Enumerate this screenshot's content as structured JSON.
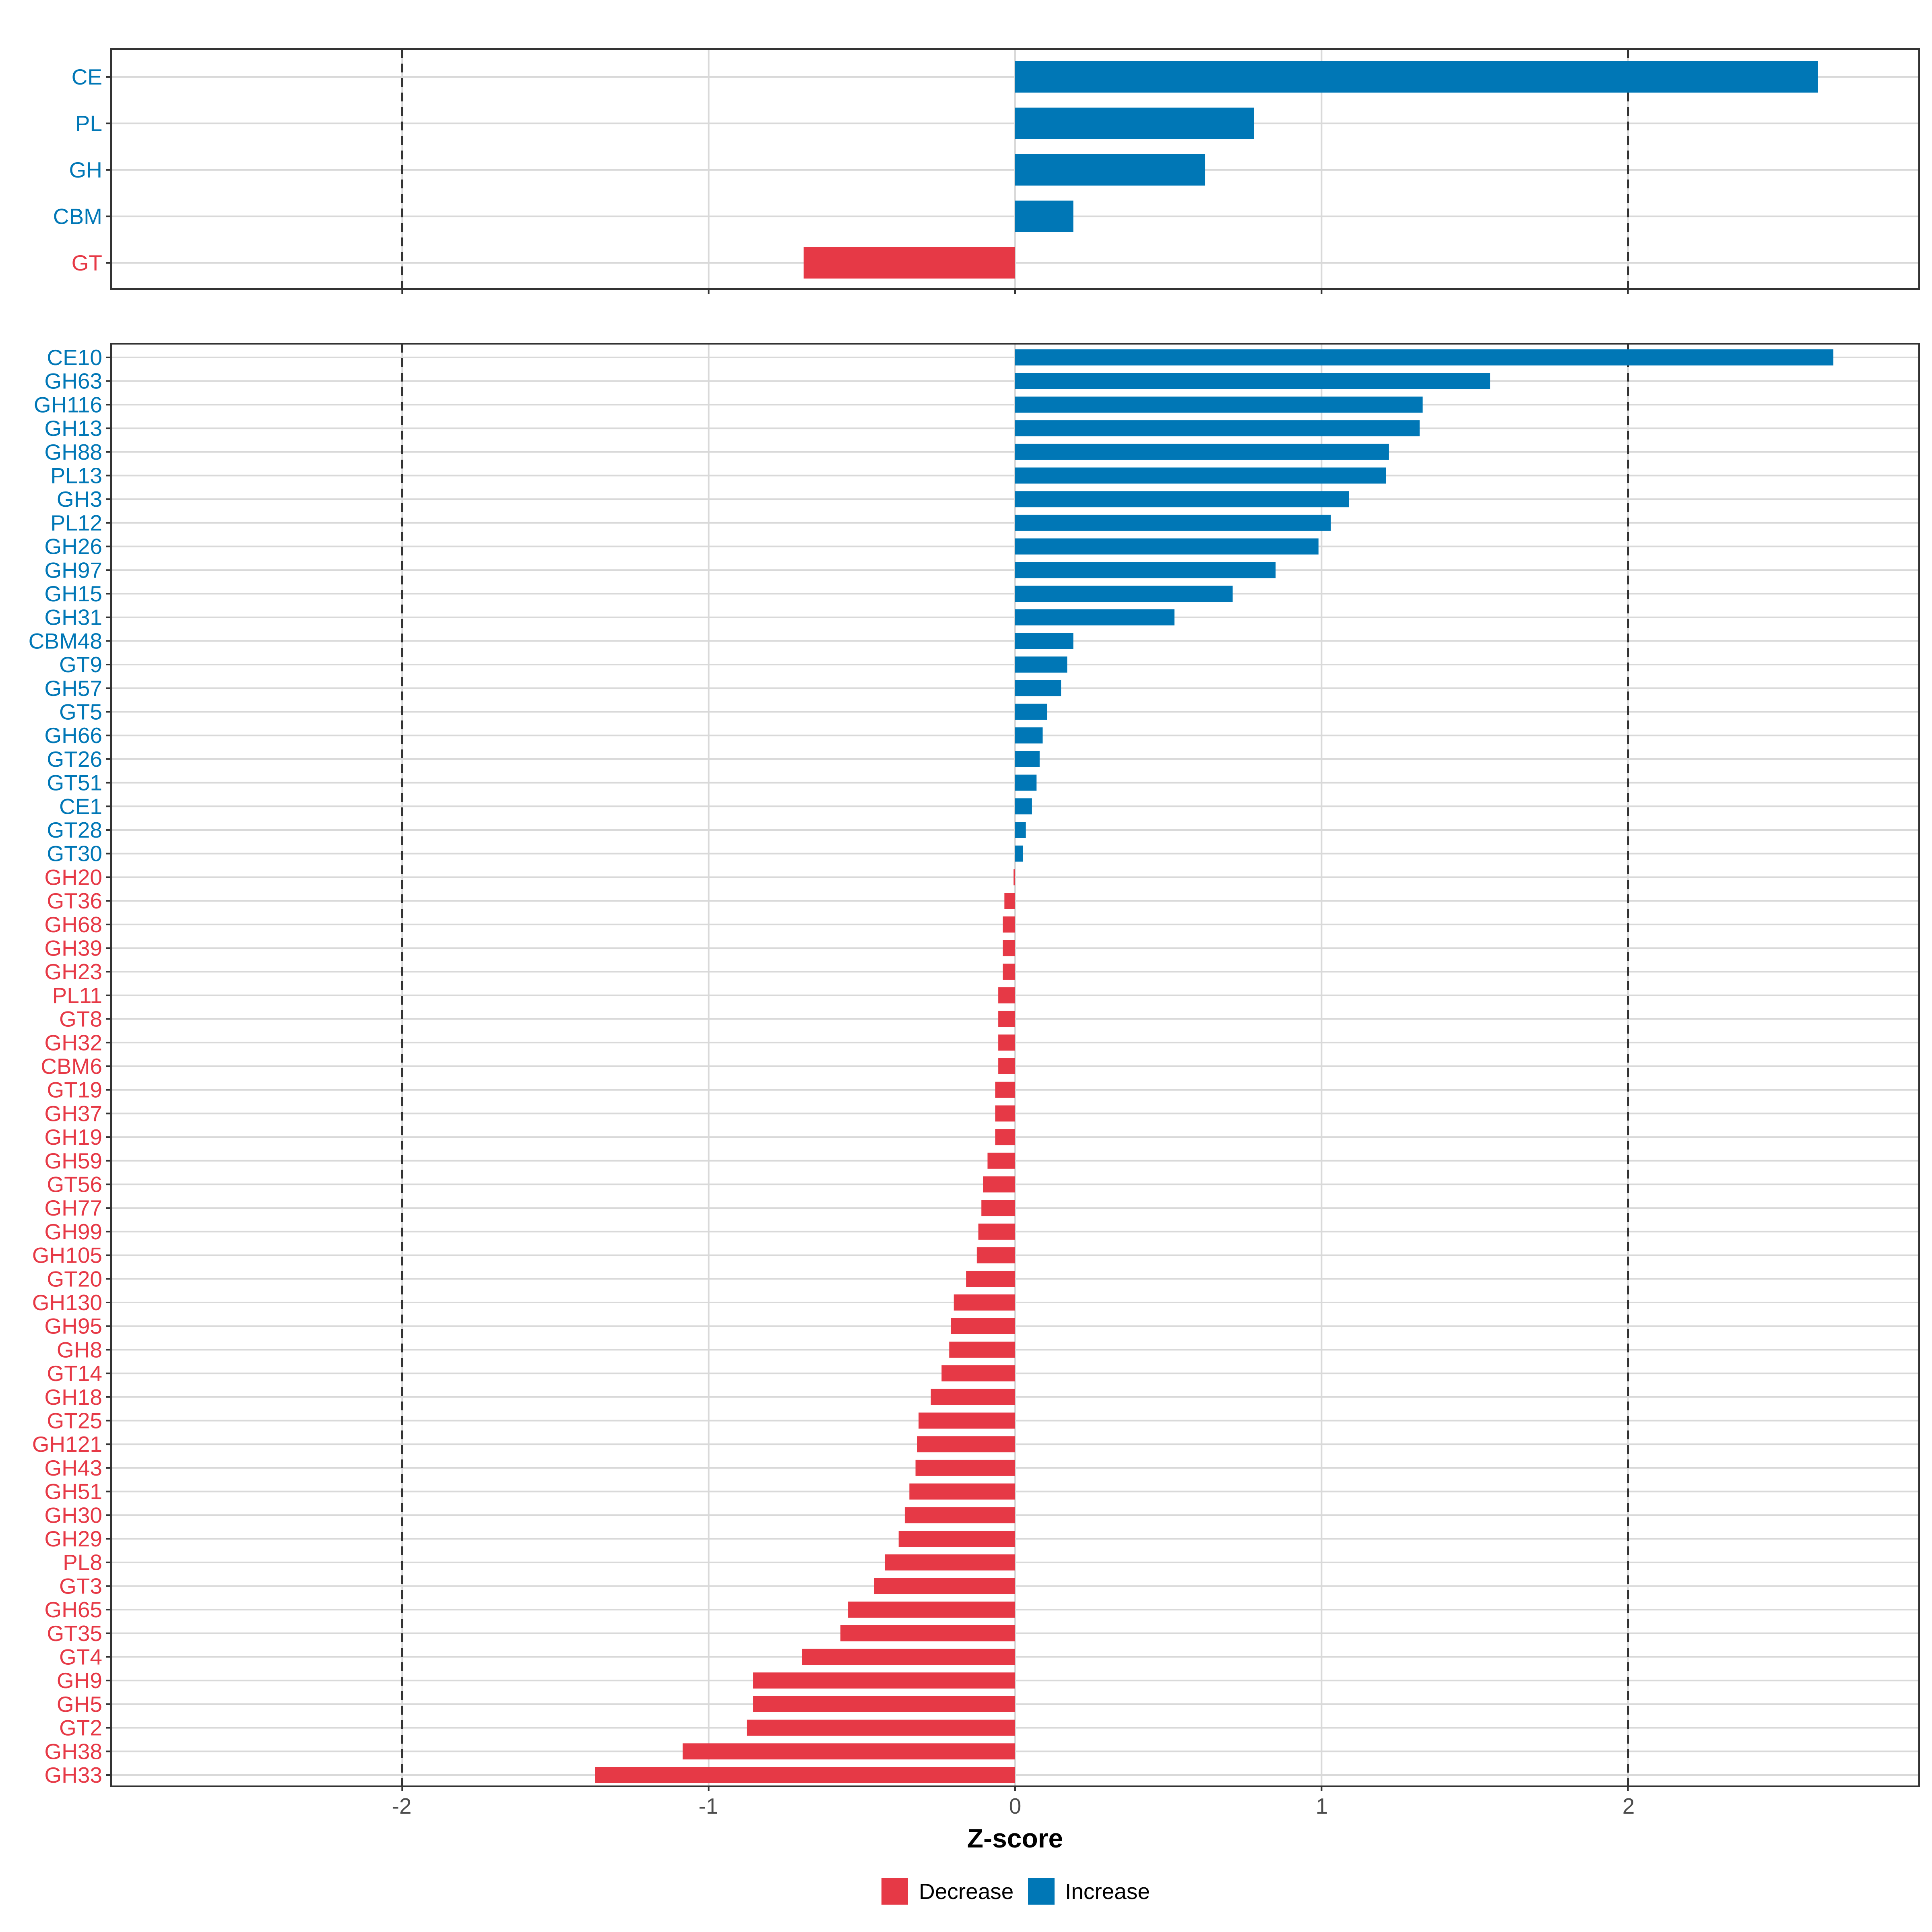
{
  "colors": {
    "increase": "#0077B6",
    "decrease": "#E63946",
    "grid": "#D9D9D9",
    "panel_border": "#333333",
    "dashed_line": "#333333",
    "tick_text": "#4D4D4D"
  },
  "chart_data": [
    {
      "type": "bar",
      "orientation": "horizontal",
      "panel": "top",
      "categories": [
        "CE",
        "PL",
        "GH",
        "CBM",
        "GT"
      ],
      "values": [
        2.62,
        0.78,
        0.62,
        0.19,
        -0.69
      ],
      "direction": [
        "Increase",
        "Increase",
        "Increase",
        "Increase",
        "Decrease"
      ],
      "xlim": [
        -2.95,
        2.95
      ],
      "reference_lines": [
        -2,
        2
      ],
      "grid": true
    },
    {
      "type": "bar",
      "orientation": "horizontal",
      "panel": "bottom",
      "categories": [
        "CE10",
        "GH63",
        "GH116",
        "GH13",
        "GH88",
        "PL13",
        "GH3",
        "PL12",
        "GH26",
        "GH97",
        "GH15",
        "GH31",
        "CBM48",
        "GT9",
        "GH57",
        "GT5",
        "GH66",
        "GT26",
        "GT51",
        "CE1",
        "GT28",
        "GT30",
        "GH20",
        "GT36",
        "GH68",
        "GH39",
        "GH23",
        "PL11",
        "GT8",
        "GH32",
        "CBM6",
        "GT19",
        "GH37",
        "GH19",
        "GH59",
        "GT56",
        "GH77",
        "GH99",
        "GH105",
        "GT20",
        "GH130",
        "GH95",
        "GH8",
        "GT14",
        "GH18",
        "GT25",
        "GH121",
        "GH43",
        "GH51",
        "GH30",
        "GH29",
        "PL8",
        "GT3",
        "GH65",
        "GT35",
        "GT4",
        "GH9",
        "GH5",
        "GT2",
        "GH38",
        "GH33"
      ],
      "values": [
        2.67,
        1.55,
        1.33,
        1.32,
        1.22,
        1.21,
        1.09,
        1.03,
        0.99,
        0.85,
        0.71,
        0.52,
        0.19,
        0.17,
        0.15,
        0.105,
        0.09,
        0.08,
        0.07,
        0.055,
        0.035,
        0.025,
        -0.005,
        -0.035,
        -0.04,
        -0.04,
        -0.04,
        -0.055,
        -0.055,
        -0.055,
        -0.055,
        -0.065,
        -0.065,
        -0.065,
        -0.09,
        -0.105,
        -0.11,
        -0.12,
        -0.125,
        -0.16,
        -0.2,
        -0.21,
        -0.215,
        -0.24,
        -0.275,
        -0.315,
        -0.32,
        -0.325,
        -0.345,
        -0.36,
        -0.38,
        -0.425,
        -0.46,
        -0.545,
        -0.57,
        -0.695,
        -0.855,
        -0.855,
        -0.875,
        -1.085,
        -1.37
      ],
      "increase_count": 22,
      "xlim": [
        -2.95,
        2.95
      ],
      "reference_lines": [
        -2,
        2
      ],
      "grid": true
    }
  ],
  "x_axis": {
    "label": "Z-score",
    "ticks": [
      "-2",
      "-1",
      "0",
      "1",
      "2"
    ],
    "tick_values": [
      -2,
      -1,
      0,
      1,
      2
    ]
  },
  "legend": {
    "position": "bottom",
    "items": [
      {
        "label": "Decrease",
        "color": "#E63946"
      },
      {
        "label": "Increase",
        "color": "#0077B6"
      }
    ]
  }
}
